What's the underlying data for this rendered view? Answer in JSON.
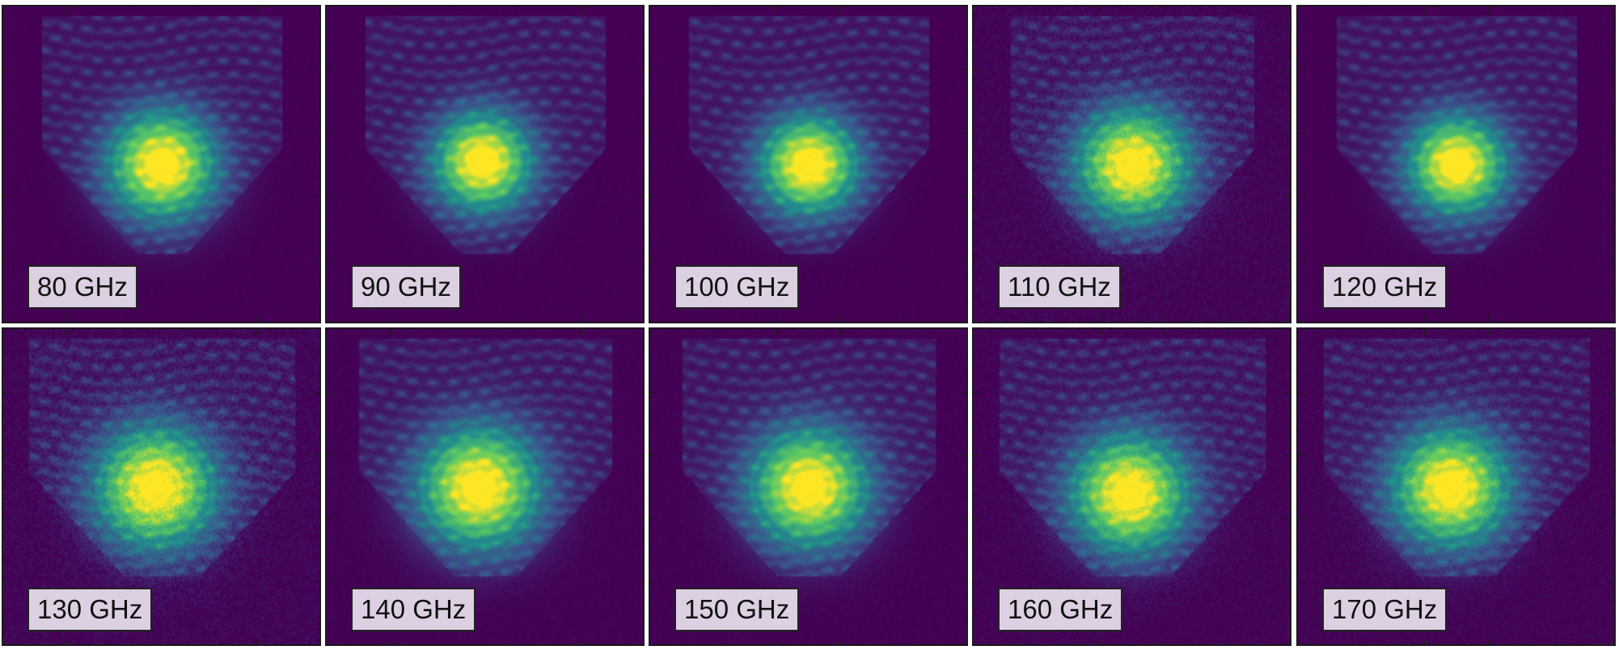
{
  "panels": [
    {
      "label": "80 GHz"
    },
    {
      "label": "90 GHz"
    },
    {
      "label": "100 GHz"
    },
    {
      "label": "110 GHz"
    },
    {
      "label": "120 GHz"
    },
    {
      "label": "130 GHz"
    },
    {
      "label": "140 GHz"
    },
    {
      "label": "150 GHz"
    },
    {
      "label": "160 GHz"
    },
    {
      "label": "170 GHz"
    }
  ],
  "colormap": [
    "#440154",
    "#3b528b",
    "#21918c",
    "#5ec962",
    "#fde725"
  ]
}
